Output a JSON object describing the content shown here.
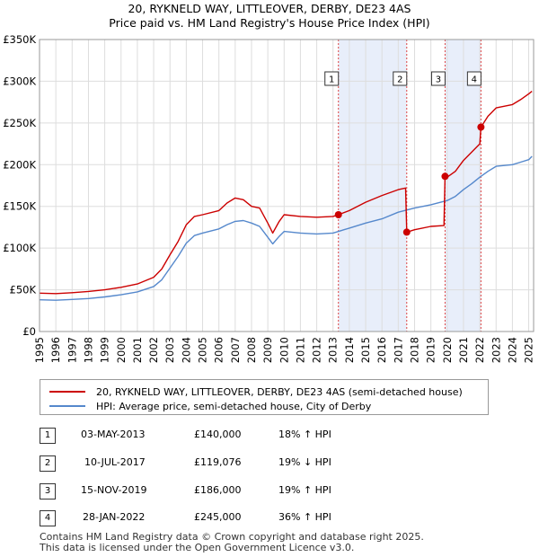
{
  "title_line1": "20, RYKNELD WAY, LITTLEOVER, DERBY, DE23 4AS",
  "title_line2": "Price paid vs. HM Land Registry's House Price Index (HPI)",
  "colors": {
    "property": "#cc0000",
    "hpi": "#5588cc",
    "shade": "#e8eefa",
    "grid": "#dddddd",
    "vline": "#dd4444"
  },
  "chart_data": {
    "type": "line",
    "xlim": [
      1995,
      2025.3
    ],
    "ylim": [
      0,
      350000
    ],
    "ytick_values": [
      0,
      50000,
      100000,
      150000,
      200000,
      250000,
      300000,
      350000
    ],
    "ytick_labels": [
      "£0",
      "£50K",
      "£100K",
      "£150K",
      "£200K",
      "£250K",
      "£300K",
      "£350K"
    ],
    "xtick_values": [
      1995,
      1996,
      1997,
      1998,
      1999,
      2000,
      2001,
      2002,
      2003,
      2004,
      2005,
      2006,
      2007,
      2008,
      2009,
      2010,
      2011,
      2012,
      2013,
      2014,
      2015,
      2016,
      2017,
      2018,
      2019,
      2020,
      2021,
      2022,
      2023,
      2024,
      2025
    ],
    "xtick_labels": [
      "1995",
      "1996",
      "1997",
      "1998",
      "1999",
      "2000",
      "2001",
      "2002",
      "2003",
      "2004",
      "2005",
      "2006",
      "2007",
      "2008",
      "2009",
      "2010",
      "2011",
      "2012",
      "2013",
      "2014",
      "2015",
      "2016",
      "2017",
      "2018",
      "2019",
      "2020",
      "2021",
      "2022",
      "2023",
      "2024",
      "2025"
    ],
    "shaded_ranges": [
      [
        2013.33,
        2017.52
      ],
      [
        2019.87,
        2022.07
      ]
    ],
    "series": [
      {
        "name": "20, RYKNELD WAY, LITTLEOVER, DERBY, DE23 4AS (semi-detached house)",
        "color": "#cc0000",
        "x": [
          1995,
          1996,
          1997,
          1998,
          1999,
          2000,
          2001,
          2002,
          2002.5,
          2003,
          2003.5,
          2004,
          2004.5,
          2005,
          2006,
          2006.5,
          2007,
          2007.5,
          2008,
          2008.5,
          2009,
          2009.3,
          2009.7,
          2010,
          2011,
          2012,
          2013,
          2013.33,
          2014,
          2015,
          2016,
          2017,
          2017.45,
          2017.52,
          2018,
          2019,
          2019.8,
          2019.87,
          2020,
          2020.5,
          2021,
          2021.5,
          2022,
          2022.07,
          2022.5,
          2023,
          2024,
          2024.5,
          2025,
          2025.2
        ],
        "y": [
          46000,
          45500,
          46500,
          48000,
          50000,
          53000,
          57000,
          65000,
          75000,
          92000,
          108000,
          128000,
          138000,
          140000,
          145000,
          154000,
          160000,
          158000,
          150000,
          148000,
          130000,
          118000,
          132000,
          140000,
          138000,
          137000,
          138000,
          140000,
          145000,
          155000,
          163000,
          170000,
          172000,
          119076,
          122000,
          126000,
          127000,
          186000,
          185000,
          192000,
          205000,
          215000,
          225000,
          245000,
          258000,
          268000,
          272000,
          278000,
          285000,
          288000
        ]
      },
      {
        "name": "HPI: Average price, semi-detached house, City of Derby",
        "color": "#5588cc",
        "x": [
          1995,
          1996,
          1997,
          1998,
          1999,
          2000,
          2001,
          2002,
          2002.5,
          2003,
          2003.5,
          2004,
          2004.5,
          2005,
          2006,
          2006.5,
          2007,
          2007.5,
          2008,
          2008.5,
          2009,
          2009.3,
          2009.7,
          2010,
          2011,
          2012,
          2013,
          2014,
          2015,
          2016,
          2017,
          2018,
          2019,
          2020,
          2020.5,
          2021,
          2021.5,
          2022,
          2022.5,
          2023,
          2024,
          2024.5,
          2025,
          2025.2
        ],
        "y": [
          38000,
          37500,
          38500,
          39500,
          41500,
          44000,
          47500,
          54000,
          62000,
          76000,
          90000,
          106000,
          115000,
          118000,
          123000,
          128000,
          132000,
          133000,
          130000,
          126000,
          113000,
          105000,
          114000,
          120000,
          118000,
          117000,
          118000,
          124000,
          130000,
          135000,
          143000,
          148000,
          152000,
          157000,
          162000,
          170000,
          177000,
          185000,
          192000,
          198000,
          200000,
          203000,
          206000,
          210000
        ]
      }
    ],
    "sales": [
      {
        "num": "1",
        "x": 2013.33,
        "price": 140000
      },
      {
        "num": "2",
        "x": 2017.52,
        "price": 119076
      },
      {
        "num": "3",
        "x": 2019.87,
        "price": 186000
      },
      {
        "num": "4",
        "x": 2022.07,
        "price": 245000
      }
    ]
  },
  "legend": {
    "property_label": "20, RYKNELD WAY, LITTLEOVER, DERBY, DE23 4AS (semi-detached house)",
    "hpi_label": "HPI: Average price, semi-detached house, City of Derby"
  },
  "transactions": [
    {
      "num": "1",
      "date": "03-MAY-2013",
      "price": "£140,000",
      "hpi": "18% ↑ HPI"
    },
    {
      "num": "2",
      "date": "10-JUL-2017",
      "price": "£119,076",
      "hpi": "19% ↓ HPI"
    },
    {
      "num": "3",
      "date": "15-NOV-2019",
      "price": "£186,000",
      "hpi": "19% ↑ HPI"
    },
    {
      "num": "4",
      "date": "28-JAN-2022",
      "price": "£245,000",
      "hpi": "36% ↑ HPI"
    }
  ],
  "footer": {
    "line1": "Contains HM Land Registry data © Crown copyright and database right 2025.",
    "line2": "This data is licensed under the Open Government Licence v3.0."
  }
}
